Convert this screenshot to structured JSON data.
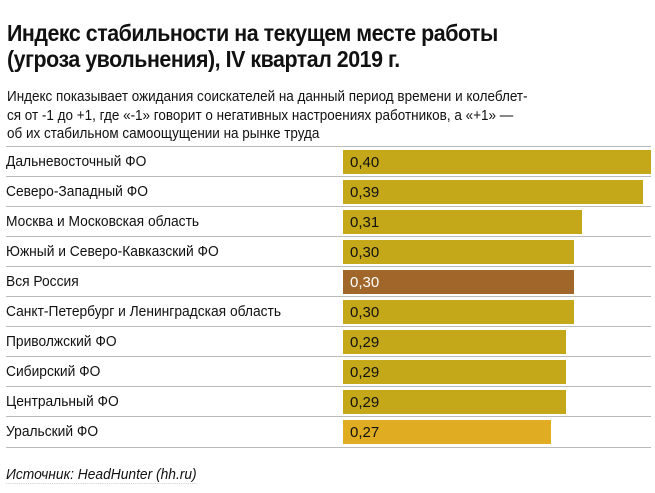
{
  "title_lines": [
    "Индекс стабильности на текущем месте работы",
    "(угроза увольнения), IV квартал 2019 г."
  ],
  "subtitle_lines": [
    "Индекс показывает ожидания соискателей на данный период времени и колеблет-",
    "ся от -1 до +1, где «-1» говорит о негативных настроениях работников, а «+1» —",
    "об их стабильном самоощущении на рынке труда"
  ],
  "source": "Источник: HeadHunter (hh.ru)",
  "chart_data": {
    "type": "bar",
    "orientation": "horizontal",
    "categories": [
      "Дальневосточный ФО",
      "Северо-Западный ФО",
      "Москва и Московская область",
      "Южный и Северо-Кавказский ФО",
      "Вся Россия",
      "Санкт-Петербург и Ленинградская область",
      "Приволжский ФО",
      "Сибирский ФО",
      "Центральный ФО",
      "Уральский ФО"
    ],
    "values": [
      0.4,
      0.39,
      0.31,
      0.3,
      0.3,
      0.3,
      0.29,
      0.29,
      0.29,
      0.27
    ],
    "value_labels": [
      "0,40",
      "0,39",
      "0,31",
      "0,30",
      "0,30",
      "0,30",
      "0,29",
      "0,29",
      "0,29",
      "0,27"
    ],
    "colors": [
      "#c4a81a",
      "#c4a81a",
      "#c4a81a",
      "#c4a81a",
      "#a0662a",
      "#c4a81a",
      "#c4a81a",
      "#c4a81a",
      "#c4a81a",
      "#e0ad22"
    ],
    "xlim": [
      0,
      0.4
    ],
    "grid": false
  }
}
